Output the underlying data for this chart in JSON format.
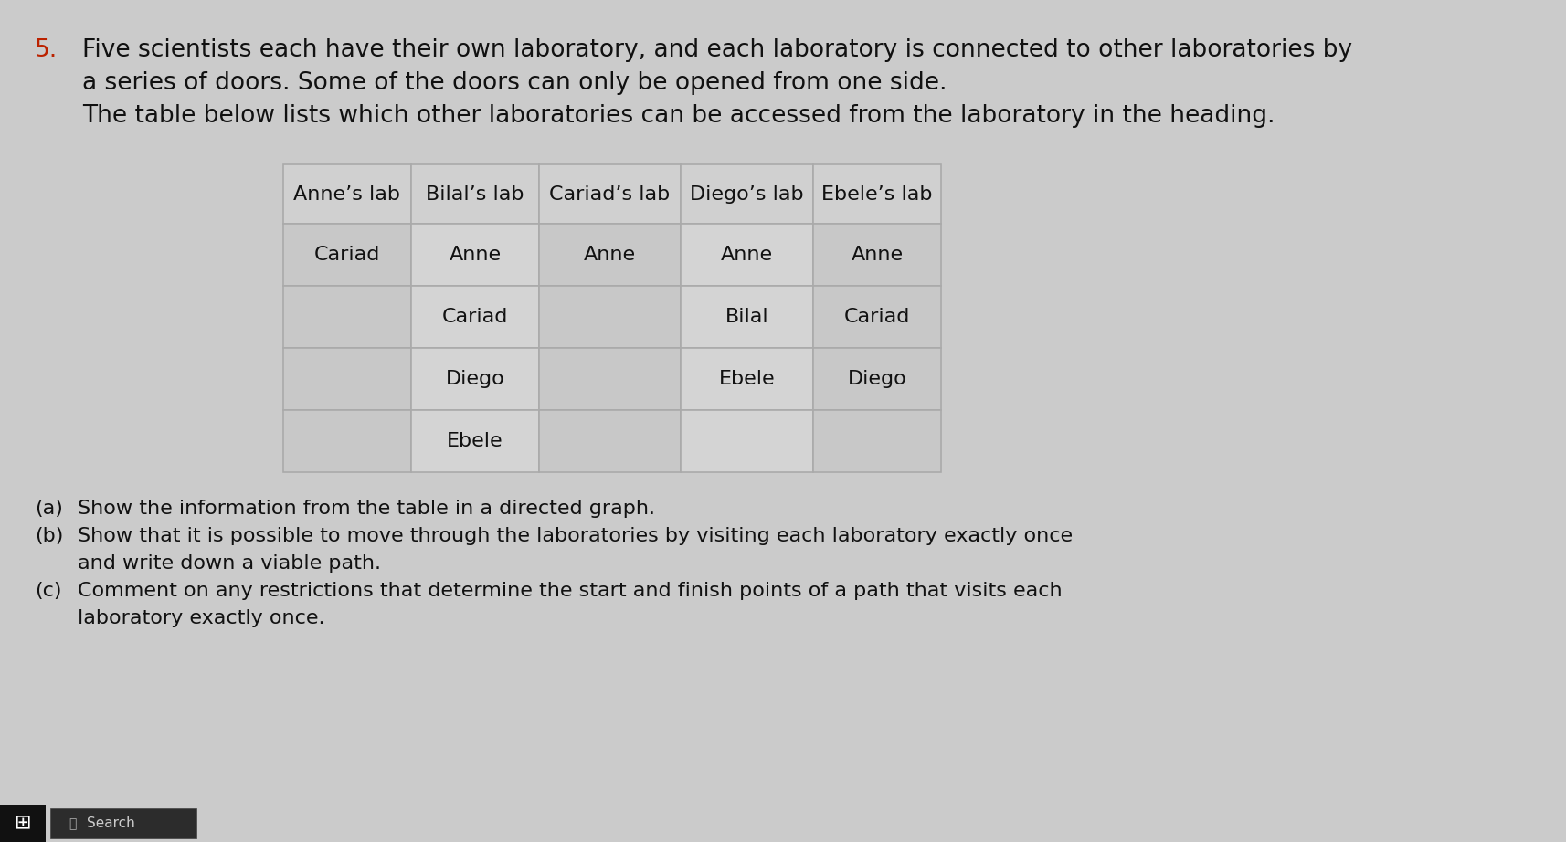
{
  "question_number": "5.",
  "intro_lines": [
    "Five scientists each have their own laboratory, and each laboratory is connected to other laboratories by",
    "a series of doors. Some of the doors can only be opened from one side.",
    "The table below lists which other laboratories can be accessed from the laboratory in the heading."
  ],
  "table_headers": [
    "Anne’s lab",
    "Bilal’s lab",
    "Cariad’s lab",
    "Diego’s lab",
    "Ebele’s lab"
  ],
  "table_data": [
    [
      "Cariad",
      "Anne",
      "Anne",
      "Anne",
      "Anne"
    ],
    [
      "",
      "Cariad",
      "",
      "Bilal",
      "Cariad"
    ],
    [
      "",
      "Diego",
      "",
      "Ebele",
      "Diego"
    ],
    [
      "",
      "Ebele",
      "",
      "",
      ""
    ]
  ],
  "parts": [
    [
      "(a)",
      "Show the information from the table in a directed graph."
    ],
    [
      "(b)",
      "Show that it is possible to move through the laboratories by visiting each laboratory exactly once"
    ],
    [
      "",
      "and write down a viable path."
    ],
    [
      "(c)",
      "Comment on any restrictions that determine the start and finish points of a path that visits each"
    ],
    [
      "",
      "laboratory exactly once."
    ]
  ],
  "bg_color": "#cbcbcb",
  "table_cell_light": "#d4d4d4",
  "table_cell_dark": "#c8c8c8",
  "table_header_bg": "#d0d0d0",
  "table_border": "#aaaaaa",
  "text_color": "#111111",
  "question_number_color": "#bb2200",
  "taskbar_color": "#1c1c1c",
  "taskbar_search_bg": "#2c2c2c",
  "taskbar_text_color": "#cccccc",
  "font_size_intro": 19,
  "font_size_table_header": 16,
  "font_size_table_data": 16,
  "font_size_parts": 16,
  "font_size_qnum": 19,
  "font_size_taskbar": 11
}
